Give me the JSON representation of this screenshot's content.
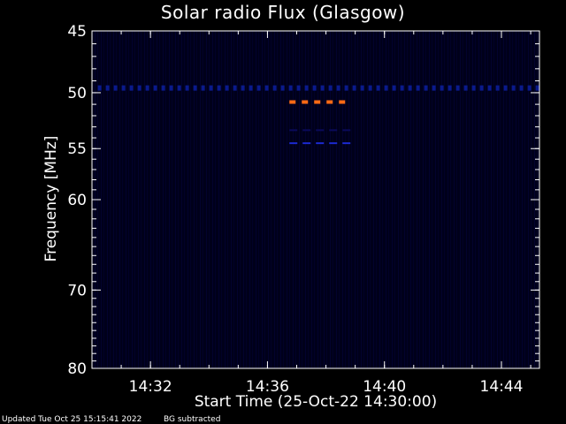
{
  "chart_data": {
    "type": "heatmap",
    "title": "Solar radio Flux (Glasgow)",
    "xlabel": "Start Time (25-Oct-22 14:30:00)",
    "ylabel": "Frequency [MHz]",
    "x_unit": "minutes after 14:30:00",
    "xlim": [
      0.0,
      15.3
    ],
    "ylim": [
      45,
      80
    ],
    "y_reversed": true,
    "y_scale": "log",
    "x_ticks": [
      {
        "value": 2,
        "label": "14:32"
      },
      {
        "value": 6,
        "label": "14:36"
      },
      {
        "value": 10,
        "label": "14:40"
      },
      {
        "value": 14,
        "label": "14:44"
      }
    ],
    "y_ticks": [
      {
        "value": 45,
        "label": "45"
      },
      {
        "value": 50,
        "label": "50"
      },
      {
        "value": 55,
        "label": "55"
      },
      {
        "value": 60,
        "label": "60"
      },
      {
        "value": 70,
        "label": "70"
      },
      {
        "value": 80,
        "label": "80"
      }
    ],
    "background_color": "#000018",
    "features": [
      {
        "name": "rfi-band",
        "freq": 49.6,
        "t_start": 0.2,
        "t_end": 15.3,
        "color": "#0a1a8c",
        "intensity": "medium"
      },
      {
        "name": "burst-band-orange",
        "freq": 50.8,
        "t_start": 6.75,
        "t_end": 8.85,
        "color": "#ff6a14",
        "intensity": "high"
      },
      {
        "name": "band-dark-blue",
        "freq": 53.3,
        "t_start": 6.75,
        "t_end": 8.85,
        "color": "#0a0a5a",
        "intensity": "low"
      },
      {
        "name": "band-blue",
        "freq": 54.5,
        "t_start": 6.75,
        "t_end": 8.85,
        "color": "#1b2ad0",
        "intensity": "medium"
      }
    ]
  },
  "footer": {
    "updated": "Updated Tue Oct 25 15:15:41 2022",
    "bg_note": "BG subtracted"
  }
}
